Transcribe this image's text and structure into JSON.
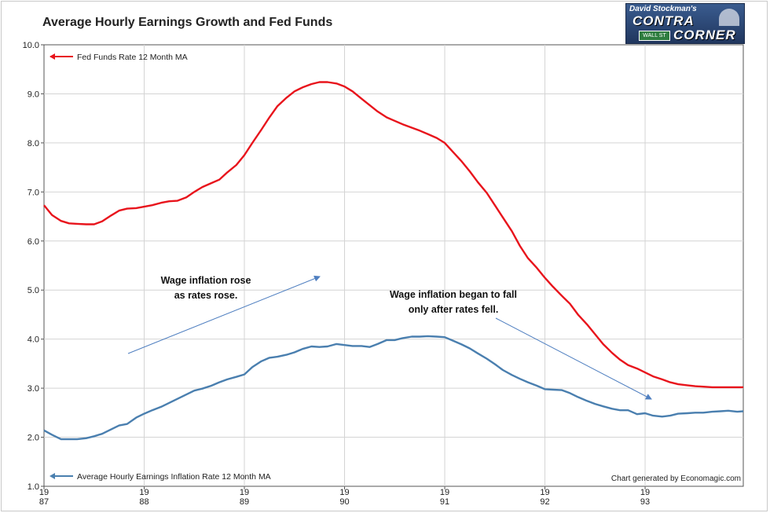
{
  "title": "Average Hourly Earnings Growth and Fed Funds",
  "logo": {
    "line1": "David Stockman's",
    "line2": "CONTRA",
    "line3": "CORNER",
    "sign": "WALL ST"
  },
  "credit": "Chart generated by Economagic.com",
  "annotations": {
    "left_line1": "Wage inflation rose",
    "left_line2": "as rates rose.",
    "right_line1": "Wage inflation began to fall",
    "right_line2": "only after rates fell."
  },
  "colors": {
    "fed_funds": "#e8141c",
    "earnings": "#4a7faf",
    "arrow": "#4f7fc0",
    "grid": "#d4d4d4"
  },
  "chart_data": {
    "type": "line",
    "title": "Average Hourly Earnings Growth and Fed Funds",
    "ylim": [
      1.0,
      10.0
    ],
    "y_ticks": [
      "10.0",
      "9.0",
      "8.0",
      "7.0",
      "6.0",
      "5.0",
      "4.0",
      "3.0",
      "2.0",
      "1.0"
    ],
    "xlim": [
      1987.0,
      1993.98
    ],
    "x_ticks": [
      {
        "top": "19",
        "bottom": "87",
        "x": 1987
      },
      {
        "top": "19",
        "bottom": "88",
        "x": 1988
      },
      {
        "top": "19",
        "bottom": "89",
        "x": 1989
      },
      {
        "top": "19",
        "bottom": "90",
        "x": 1990
      },
      {
        "top": "19",
        "bottom": "91",
        "x": 1991
      },
      {
        "top": "19",
        "bottom": "92",
        "x": 1992
      },
      {
        "top": "19",
        "bottom": "93",
        "x": 1993
      }
    ],
    "grid": true,
    "legend": "top-left and bottom-left inline labels",
    "series": [
      {
        "name": "Fed Funds Rate 12 Month MA",
        "x": [
          1987.0,
          1987.08,
          1987.17,
          1987.25,
          1987.33,
          1987.42,
          1987.5,
          1987.58,
          1987.67,
          1987.75,
          1987.83,
          1987.92,
          1988.0,
          1988.08,
          1988.17,
          1988.25,
          1988.33,
          1988.42,
          1988.5,
          1988.58,
          1988.67,
          1988.75,
          1988.83,
          1988.92,
          1989.0,
          1989.08,
          1989.17,
          1989.25,
          1989.33,
          1989.42,
          1989.5,
          1989.58,
          1989.67,
          1989.75,
          1989.83,
          1989.92,
          1990.0,
          1990.08,
          1990.17,
          1990.25,
          1990.33,
          1990.42,
          1990.5,
          1990.58,
          1990.67,
          1990.75,
          1990.83,
          1990.92,
          1991.0,
          1991.08,
          1991.17,
          1991.25,
          1991.33,
          1991.42,
          1991.5,
          1991.58,
          1991.67,
          1991.75,
          1991.83,
          1991.92,
          1992.0,
          1992.08,
          1992.17,
          1992.25,
          1992.33,
          1992.42,
          1992.5,
          1992.58,
          1992.67,
          1992.75,
          1992.83,
          1992.92,
          1993.0,
          1993.08,
          1993.17,
          1993.25,
          1993.33,
          1993.42,
          1993.5,
          1993.58,
          1993.67,
          1993.75,
          1993.83,
          1993.92,
          1993.98
        ],
        "values": [
          6.73,
          6.53,
          6.41,
          6.36,
          6.35,
          6.34,
          6.34,
          6.4,
          6.52,
          6.62,
          6.66,
          6.67,
          6.7,
          6.73,
          6.78,
          6.81,
          6.82,
          6.89,
          7.0,
          7.1,
          7.18,
          7.25,
          7.4,
          7.55,
          7.75,
          8.0,
          8.27,
          8.52,
          8.75,
          8.92,
          9.05,
          9.13,
          9.2,
          9.24,
          9.24,
          9.21,
          9.15,
          9.05,
          8.9,
          8.77,
          8.64,
          8.52,
          8.45,
          8.38,
          8.31,
          8.25,
          8.18,
          8.1,
          8.0,
          7.82,
          7.62,
          7.42,
          7.2,
          6.98,
          6.73,
          6.48,
          6.2,
          5.9,
          5.65,
          5.45,
          5.25,
          5.07,
          4.88,
          4.72,
          4.5,
          4.3,
          4.1,
          3.9,
          3.72,
          3.58,
          3.47,
          3.4,
          3.32,
          3.24,
          3.18,
          3.12,
          3.08,
          3.06,
          3.04,
          3.03,
          3.02,
          3.02,
          3.02,
          3.02,
          3.02
        ]
      },
      {
        "name": "Average Hourly Earnings Inflation Rate 12 Month MA",
        "x": [
          1987.0,
          1987.08,
          1987.17,
          1987.25,
          1987.33,
          1987.42,
          1987.5,
          1987.58,
          1987.67,
          1987.75,
          1987.83,
          1987.92,
          1988.0,
          1988.08,
          1988.17,
          1988.25,
          1988.33,
          1988.42,
          1988.5,
          1988.58,
          1988.67,
          1988.75,
          1988.83,
          1988.92,
          1989.0,
          1989.08,
          1989.17,
          1989.25,
          1989.33,
          1989.42,
          1989.5,
          1989.58,
          1989.67,
          1989.75,
          1989.83,
          1989.92,
          1990.0,
          1990.08,
          1990.17,
          1990.25,
          1990.33,
          1990.42,
          1990.5,
          1990.58,
          1990.67,
          1990.75,
          1990.83,
          1990.92,
          1991.0,
          1991.08,
          1991.17,
          1991.25,
          1991.33,
          1991.42,
          1991.5,
          1991.58,
          1991.67,
          1991.75,
          1991.83,
          1991.92,
          1992.0,
          1992.08,
          1992.17,
          1992.25,
          1992.33,
          1992.42,
          1992.5,
          1992.58,
          1992.67,
          1992.75,
          1992.83,
          1992.92,
          1993.0,
          1993.08,
          1993.17,
          1993.25,
          1993.33,
          1993.42,
          1993.5,
          1993.58,
          1993.67,
          1993.75,
          1993.83,
          1993.92,
          1993.98
        ],
        "values": [
          2.14,
          2.05,
          1.96,
          1.96,
          1.96,
          1.98,
          2.02,
          2.07,
          2.16,
          2.24,
          2.27,
          2.4,
          2.48,
          2.55,
          2.62,
          2.7,
          2.78,
          2.87,
          2.95,
          2.99,
          3.05,
          3.12,
          3.18,
          3.23,
          3.28,
          3.43,
          3.55,
          3.62,
          3.64,
          3.68,
          3.73,
          3.8,
          3.85,
          3.84,
          3.85,
          3.9,
          3.88,
          3.86,
          3.86,
          3.84,
          3.9,
          3.98,
          3.98,
          4.02,
          4.05,
          4.05,
          4.06,
          4.05,
          4.04,
          3.97,
          3.89,
          3.81,
          3.71,
          3.6,
          3.49,
          3.37,
          3.27,
          3.19,
          3.12,
          3.05,
          2.98,
          2.97,
          2.96,
          2.9,
          2.82,
          2.74,
          2.68,
          2.63,
          2.58,
          2.55,
          2.55,
          2.47,
          2.49,
          2.44,
          2.42,
          2.44,
          2.48,
          2.49,
          2.5,
          2.5,
          2.52,
          2.53,
          2.54,
          2.52,
          2.53
        ]
      }
    ]
  }
}
